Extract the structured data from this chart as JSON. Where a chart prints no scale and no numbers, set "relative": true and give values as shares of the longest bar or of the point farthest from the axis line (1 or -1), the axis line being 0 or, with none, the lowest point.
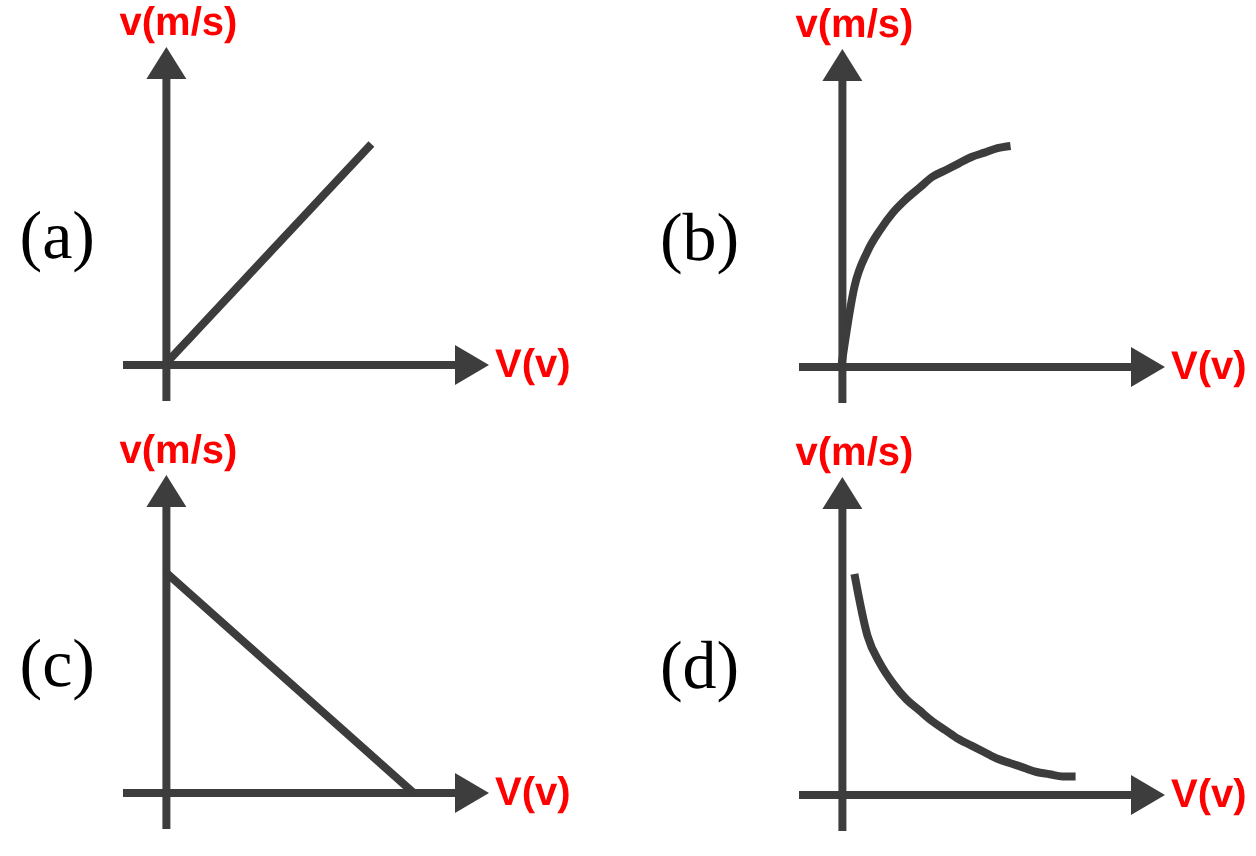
{
  "chart_data": [
    {
      "type": "line",
      "title": "(a)",
      "xlabel": "V(v)",
      "ylabel": "v(m/s)",
      "relative": true,
      "categories": [
        null,
        null,
        null,
        null,
        null,
        null,
        null,
        null,
        null,
        null,
        null,
        null,
        null,
        null,
        null,
        null,
        null,
        null,
        null,
        null,
        null,
        null,
        null,
        null,
        null
      ],
      "color": "#3c3c3c",
      "values": [
        0,
        0.05,
        0.1,
        0.15,
        0.2,
        0.25,
        0.3,
        0.35,
        0.4,
        0.45,
        0.5,
        0.55,
        0.6,
        0.65,
        0.7,
        0.75,
        0.8,
        0.85,
        0.9,
        0.95,
        1,
        null,
        null,
        null,
        null
      ]
    },
    {
      "type": "line",
      "title": "(b)",
      "xlabel": "V(v)",
      "ylabel": "v(m/s)",
      "relative": true,
      "categories": [
        null,
        null,
        null,
        null,
        null,
        null,
        null,
        null,
        null,
        null,
        null,
        null,
        null,
        null,
        null,
        null,
        null,
        null,
        null,
        null
      ],
      "color": "#3c3c3c",
      "values": [
        0,
        0.36,
        0.52,
        0.62,
        0.7,
        0.76,
        0.81,
        0.86,
        0.89,
        0.92,
        0.95,
        0.97,
        0.99,
        1,
        null,
        null,
        null,
        null,
        null,
        null
      ]
    },
    {
      "type": "line",
      "title": "(c)",
      "xlabel": "V(v)",
      "ylabel": "v(m/s)",
      "relative": true,
      "categories": [
        null,
        null,
        null,
        null,
        null,
        null,
        null,
        null,
        null,
        null,
        null,
        null,
        null,
        null,
        null,
        null,
        null,
        null,
        null,
        null,
        null
      ],
      "color": "#3c3c3c",
      "values": [
        1,
        0.95,
        0.9,
        0.85,
        0.8,
        0.75,
        0.7,
        0.65,
        0.6,
        0.55,
        0.5,
        0.45,
        0.4,
        0.35,
        0.3,
        0.25,
        0.2,
        0.15,
        0.1,
        0.05,
        0
      ]
    },
    {
      "type": "line",
      "title": "(d)",
      "xlabel": "V(v)",
      "ylabel": "v(m/s)",
      "relative": true,
      "categories": [
        null,
        null,
        null,
        null,
        null,
        null,
        null,
        null,
        null,
        null,
        null,
        null,
        null,
        null,
        null,
        null,
        null,
        null,
        null,
        null
      ],
      "color": "#3c3c3c",
      "values": [
        null,
        1,
        0.72,
        0.59,
        0.5,
        0.43,
        0.38,
        0.33,
        0.29,
        0.25,
        0.22,
        0.19,
        0.16,
        0.14,
        0.12,
        0.1,
        0.09,
        0.08,
        0.08,
        null
      ]
    }
  ]
}
